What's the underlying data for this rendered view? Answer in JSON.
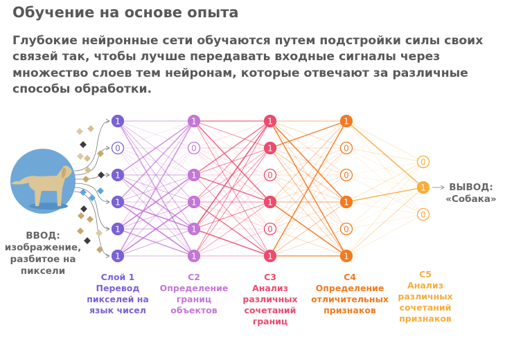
{
  "title": "Обучение на основе опыта",
  "lead": "Глубокие нейронные сети обучаются путем подстройки силы своих связей так, чтобы лучше передавать входные сигналы через множество слоев тем нейронам, которые отвечают за различные способы обработки.",
  "input_label": "ВВОД:\nизображение,\nразбитое на\nпиксели",
  "output_label": "ВЫВОД:\n«Собака»",
  "layers": [
    {
      "title": "Слой 1",
      "desc": "Перевод\nпикселей на\nязык чисел",
      "color": "#7a62d3",
      "values": [
        1,
        0,
        1,
        1,
        1,
        1
      ]
    },
    {
      "title": "С2",
      "desc": "Определение\nграниц\nобъектов",
      "color": "#c477d6",
      "values": [
        1,
        0,
        1,
        1,
        1,
        1
      ]
    },
    {
      "title": "С3",
      "desc": "Анализ\nразличных\nсочетаний\nграниц",
      "color": "#ec4b6e",
      "values": [
        1,
        1,
        0,
        1,
        0,
        1
      ]
    },
    {
      "title": "С4",
      "desc": "Определение\nотличительных\nпризнаков",
      "color": "#f47a20",
      "values": [
        1,
        0,
        0,
        1,
        0,
        1
      ]
    },
    {
      "title": "С5",
      "desc": "Анализ\nразличных\nсочетаний\nпризнаков",
      "color": "#f8ad3c",
      "values": [
        0,
        1,
        0
      ]
    }
  ],
  "icons": {
    "input": "dog-image-icon",
    "pixels": "pixel-square-icon"
  }
}
